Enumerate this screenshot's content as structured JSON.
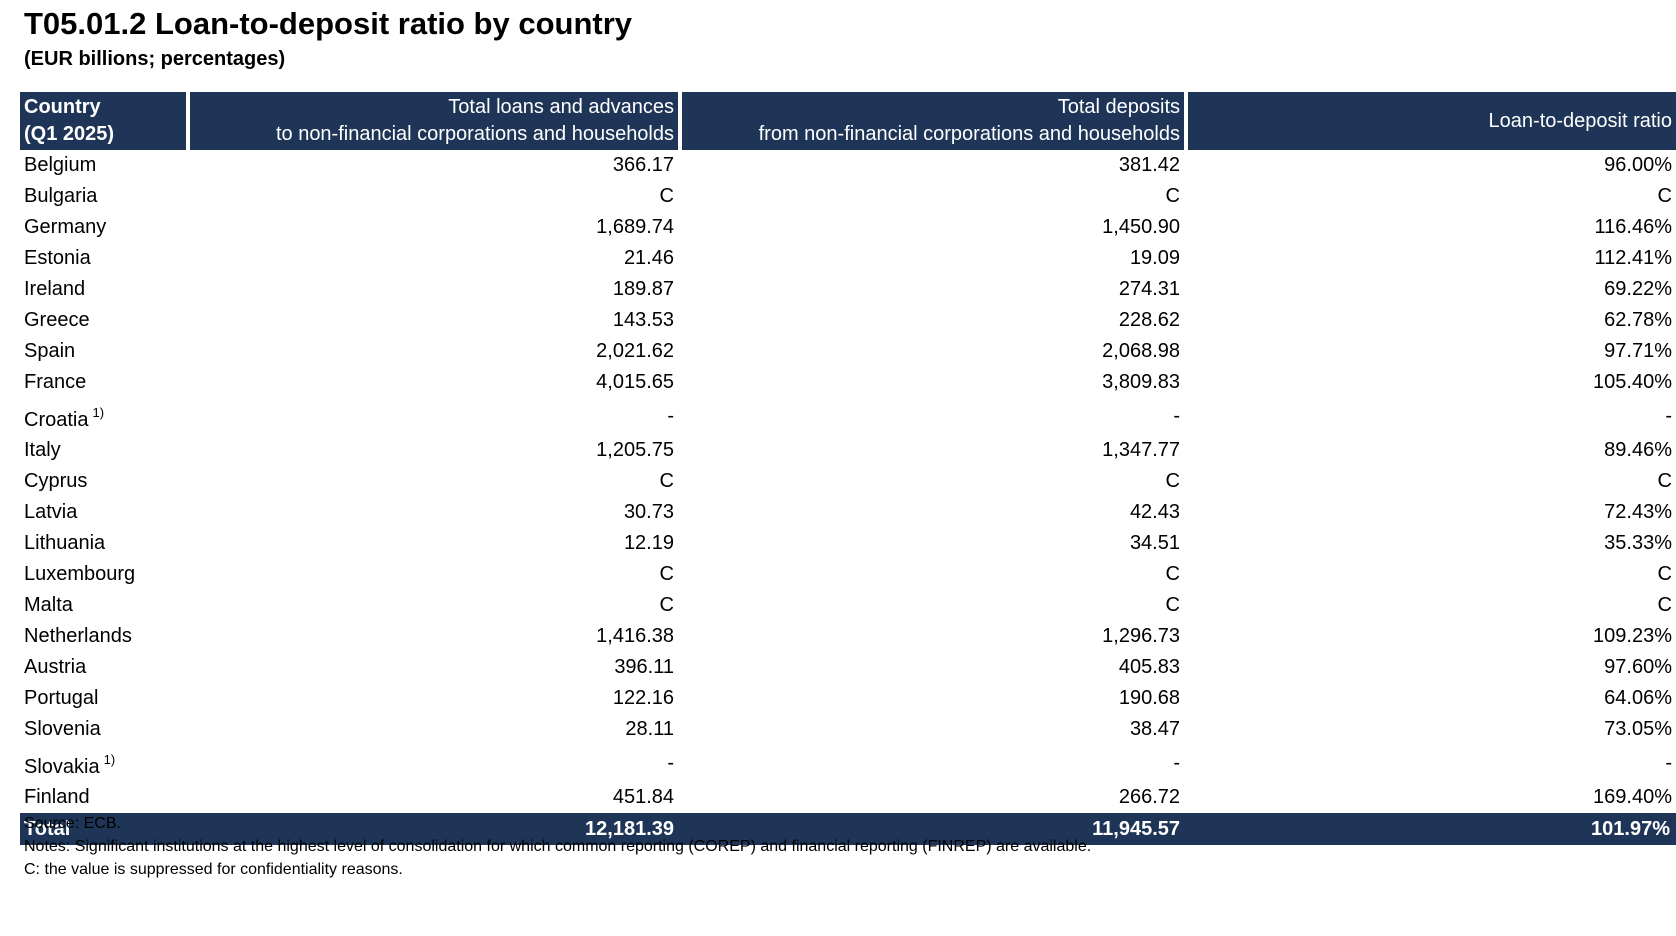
{
  "title": "T05.01.2 Loan-to-deposit ratio by country",
  "subtitle": "(EUR billions; percentages)",
  "table": {
    "headers": {
      "country_line1": "Country",
      "country_line2": "(Q1 2025)",
      "loans_line1": "Total loans and advances",
      "loans_line2": "to non-financial corporations and households",
      "deposits_line1": "Total deposits",
      "deposits_line2": "from non-financial corporations and households",
      "ratio": "Loan-to-deposit ratio"
    },
    "rows": [
      {
        "country": "Belgium",
        "note": "",
        "loans": "366.17",
        "deposits": "381.42",
        "ratio": "96.00%"
      },
      {
        "country": "Bulgaria",
        "note": "",
        "loans": "C",
        "deposits": "C",
        "ratio": "C"
      },
      {
        "country": "Germany",
        "note": "",
        "loans": "1,689.74",
        "deposits": "1,450.90",
        "ratio": "116.46%"
      },
      {
        "country": "Estonia",
        "note": "",
        "loans": "21.46",
        "deposits": "19.09",
        "ratio": "112.41%"
      },
      {
        "country": "Ireland",
        "note": "",
        "loans": "189.87",
        "deposits": "274.31",
        "ratio": "69.22%"
      },
      {
        "country": "Greece",
        "note": "",
        "loans": "143.53",
        "deposits": "228.62",
        "ratio": "62.78%"
      },
      {
        "country": "Spain",
        "note": "",
        "loans": "2,021.62",
        "deposits": "2,068.98",
        "ratio": "97.71%"
      },
      {
        "country": "France",
        "note": "",
        "loans": "4,015.65",
        "deposits": "3,809.83",
        "ratio": "105.40%"
      },
      {
        "country": "Croatia",
        "note": "1)",
        "loans": "-",
        "deposits": "-",
        "ratio": "-"
      },
      {
        "country": "Italy",
        "note": "",
        "loans": "1,205.75",
        "deposits": "1,347.77",
        "ratio": "89.46%"
      },
      {
        "country": "Cyprus",
        "note": "",
        "loans": "C",
        "deposits": "C",
        "ratio": "C"
      },
      {
        "country": "Latvia",
        "note": "",
        "loans": "30.73",
        "deposits": "42.43",
        "ratio": "72.43%"
      },
      {
        "country": "Lithuania",
        "note": "",
        "loans": "12.19",
        "deposits": "34.51",
        "ratio": "35.33%"
      },
      {
        "country": "Luxembourg",
        "note": "",
        "loans": "C",
        "deposits": "C",
        "ratio": "C"
      },
      {
        "country": "Malta",
        "note": "",
        "loans": "C",
        "deposits": "C",
        "ratio": "C"
      },
      {
        "country": "Netherlands",
        "note": "",
        "loans": "1,416.38",
        "deposits": "1,296.73",
        "ratio": "109.23%"
      },
      {
        "country": "Austria",
        "note": "",
        "loans": "396.11",
        "deposits": "405.83",
        "ratio": "97.60%"
      },
      {
        "country": "Portugal",
        "note": "",
        "loans": "122.16",
        "deposits": "190.68",
        "ratio": "64.06%"
      },
      {
        "country": "Slovenia",
        "note": "",
        "loans": "28.11",
        "deposits": "38.47",
        "ratio": "73.05%"
      },
      {
        "country": "Slovakia",
        "note": "1)",
        "loans": "-",
        "deposits": "-",
        "ratio": "-"
      },
      {
        "country": "Finland",
        "note": "",
        "loans": "451.84",
        "deposits": "266.72",
        "ratio": "169.40%"
      }
    ],
    "total": {
      "label": "Total",
      "loans": "12,181.39",
      "deposits": "11,945.57",
      "ratio": "101.97%"
    }
  },
  "notes": {
    "source": "Source: ECB.",
    "notes": "Notes: Significant institutions at the highest level of consolidation for which common reporting (COREP) and financial reporting (FINREP) are available.",
    "c_note": "C: the value is suppressed for confidentiality reasons."
  },
  "colors": {
    "header_bg": "#1f3557",
    "header_text": "#ffffff"
  }
}
